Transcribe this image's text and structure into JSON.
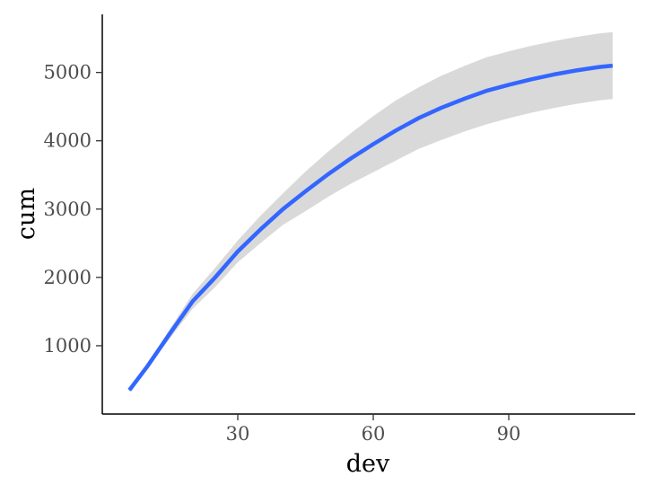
{
  "chart_data": {
    "type": "line",
    "title": "",
    "xlabel": "dev",
    "ylabel": "cum",
    "xlim": [
      0,
      118
    ],
    "ylim": [
      0,
      5850
    ],
    "xticks": [
      30,
      60,
      90
    ],
    "xtick_labels": [
      "30",
      "60",
      "90"
    ],
    "yticks": [
      1000,
      2000,
      3000,
      4000,
      5000
    ],
    "ytick_labels": [
      "1000",
      "2000",
      "3000",
      "4000",
      "5000"
    ],
    "grid": false,
    "legend": "none",
    "series": [
      {
        "kind": "smooth-line",
        "color": "#3366FF",
        "x": [
          6,
          10,
          15,
          20,
          25,
          30,
          35,
          40,
          45,
          50,
          55,
          60,
          65,
          70,
          75,
          80,
          85,
          90,
          95,
          100,
          105,
          110,
          113
        ],
        "y": [
          350,
          700,
          1180,
          1650,
          2000,
          2380,
          2700,
          3000,
          3260,
          3510,
          3740,
          3950,
          4150,
          4330,
          4480,
          4610,
          4730,
          4820,
          4900,
          4970,
          5030,
          5080,
          5100
        ]
      },
      {
        "kind": "confidence-band",
        "color": "#D9D9D9",
        "x": [
          6,
          10,
          15,
          20,
          25,
          30,
          35,
          40,
          45,
          50,
          55,
          60,
          65,
          70,
          75,
          80,
          85,
          90,
          95,
          100,
          105,
          110,
          113
        ],
        "upper": [
          380,
          730,
          1250,
          1760,
          2140,
          2540,
          2900,
          3230,
          3550,
          3840,
          4110,
          4360,
          4590,
          4780,
          4950,
          5090,
          5220,
          5310,
          5390,
          5460,
          5520,
          5570,
          5590
        ],
        "lower": [
          320,
          670,
          1110,
          1540,
          1860,
          2220,
          2500,
          2770,
          2970,
          3180,
          3370,
          3540,
          3710,
          3880,
          4010,
          4130,
          4240,
          4330,
          4410,
          4480,
          4540,
          4590,
          4610
        ]
      }
    ]
  }
}
